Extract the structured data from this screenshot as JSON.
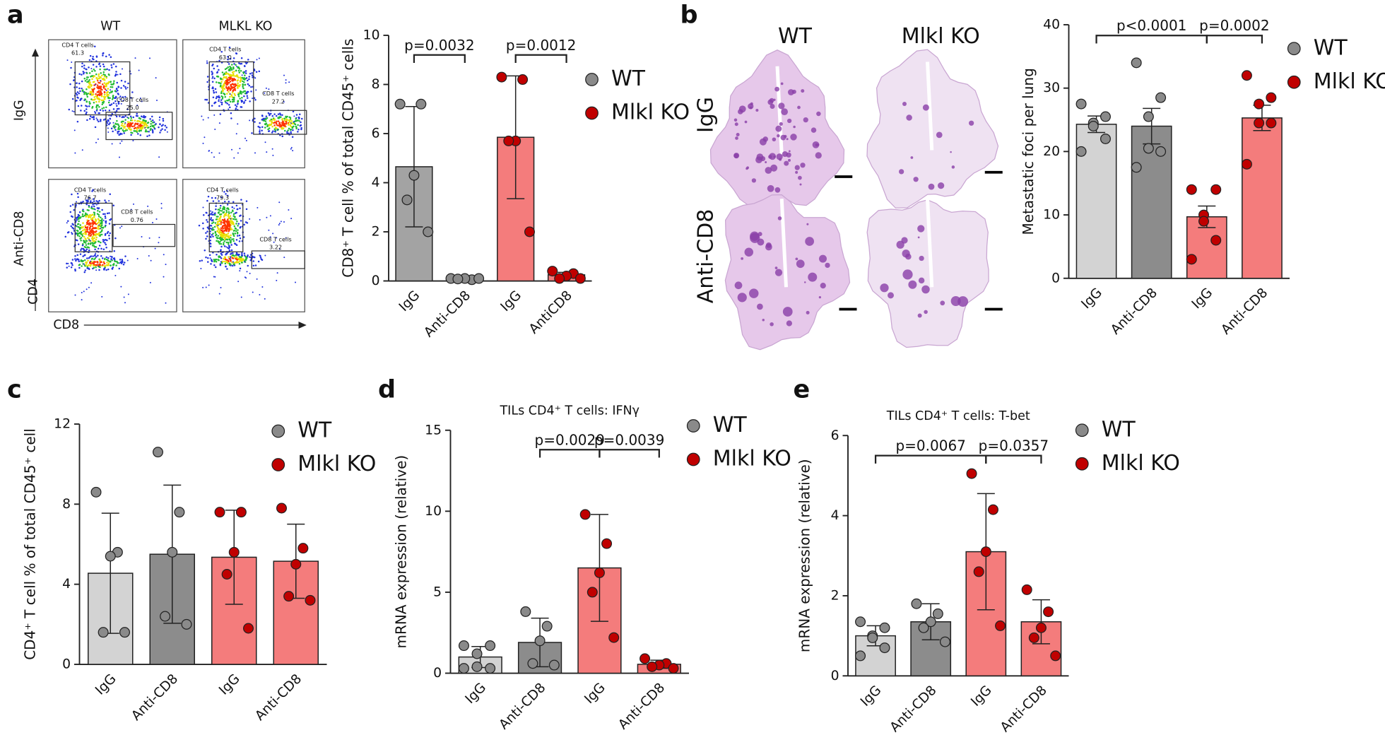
{
  "panels": [
    "a",
    "b",
    "c",
    "d",
    "e"
  ],
  "flow": {
    "columns": [
      "WT",
      "MLKL KO"
    ],
    "rows": [
      "IgG",
      "Anti-CD8"
    ],
    "x_axis": "CD8",
    "y_axis": "CD4",
    "gates": [
      [
        [
          "CD4 T cells",
          "61.3",
          "CD8 T cells",
          "25.0"
        ],
        [
          "CD4 T cells",
          "63.0",
          "CD8 T cells",
          "27.2"
        ]
      ],
      [
        [
          "CD4 T cells",
          "76.7",
          "CD8 T cells",
          "0.76"
        ],
        [
          "CD4 T cells",
          "79.3",
          "CD8 T cells",
          "3.22"
        ]
      ]
    ]
  },
  "histology": {
    "columns": [
      "WT",
      "Mlkl KO"
    ],
    "rows": [
      "IgG",
      "Anti-CD8"
    ]
  },
  "chart_data": [
    {
      "type": "bar",
      "ylabel": "CD8⁺ T cell % of total CD45⁺ cells",
      "categories": [
        "IgG",
        "Anti-CD8",
        "IgG",
        "AntiCD8"
      ],
      "values": [
        4.65,
        0.1,
        5.85,
        0.25
      ],
      "errors": [
        2.45,
        0.05,
        2.5,
        0.1
      ],
      "points": [
        [
          7.2,
          7.2,
          4.3,
          3.3,
          2.0
        ],
        [
          0.1,
          0.05,
          0.1,
          0.08,
          0.1
        ],
        [
          8.3,
          8.2,
          5.7,
          5.7,
          2.0
        ],
        [
          0.4,
          0.3,
          0.2,
          0.1,
          0.1
        ]
      ],
      "bar_colors": [
        "#a3a3a3",
        "#a3a3a3",
        "#f47c7c",
        "#f47c7c"
      ],
      "point_colors": [
        "#8a8a8a",
        "#8a8a8a",
        "#c00000",
        "#c00000"
      ],
      "legend": [
        {
          "name": "WT",
          "color": "#8a8a8a"
        },
        {
          "name": "Mlkl KO",
          "color": "#c00000"
        }
      ],
      "annotations": [
        "p=0.0032",
        "p=0.0012"
      ],
      "ylim": [
        0,
        10
      ],
      "yticks": [
        0,
        2,
        4,
        6,
        8,
        10
      ]
    },
    {
      "type": "bar",
      "ylabel": "Metastatic foci per lung",
      "categories": [
        "IgG",
        "Anti-CD8",
        "IgG",
        "Anti-CD8"
      ],
      "values": [
        24.3,
        24,
        9.7,
        25.3
      ],
      "errors": [
        1.3,
        2.8,
        1.7,
        2.0
      ],
      "points": [
        [
          27.5,
          25.5,
          24.5,
          24,
          22,
          20
        ],
        [
          34,
          28.5,
          25.5,
          20.5,
          20,
          17.5
        ],
        [
          14,
          14,
          10,
          9,
          6,
          3
        ],
        [
          32,
          28.5,
          27.5,
          24.5,
          24.5,
          18
        ]
      ],
      "bar_colors": [
        "#d3d3d3",
        "#8c8c8c",
        "#f47c7c",
        "#f47c7c"
      ],
      "point_colors": [
        "#8a8a8a",
        "#8a8a8a",
        "#c00000",
        "#c00000"
      ],
      "legend": [
        {
          "name": "WT",
          "color": "#8a8a8a"
        },
        {
          "name": "Mlkl KO",
          "color": "#c00000"
        }
      ],
      "annotations": [
        "p<0.0001",
        "p=0.0002"
      ],
      "ylim": [
        0,
        40
      ],
      "yticks": [
        0,
        10,
        20,
        30,
        40
      ]
    },
    {
      "type": "bar",
      "ylabel": "CD4⁺ T cell % of total CD45⁺ cell",
      "categories": [
        "IgG",
        "Anti-CD8",
        "IgG",
        "Anti-CD8"
      ],
      "values": [
        4.55,
        5.5,
        5.35,
        5.15
      ],
      "errors": [
        3.0,
        3.45,
        2.35,
        1.85
      ],
      "points": [
        [
          8.6,
          5.6,
          5.4,
          1.6,
          1.6
        ],
        [
          10.6,
          7.6,
          5.6,
          2.4,
          2.0
        ],
        [
          7.6,
          7.6,
          5.6,
          4.5,
          1.8
        ],
        [
          7.8,
          5.8,
          5.0,
          3.4,
          3.2
        ]
      ],
      "bar_colors": [
        "#d3d3d3",
        "#8c8c8c",
        "#f47c7c",
        "#f47c7c"
      ],
      "point_colors": [
        "#8a8a8a",
        "#8a8a8a",
        "#c00000",
        "#c00000"
      ],
      "legend": [
        {
          "name": "WT",
          "color": "#8a8a8a"
        },
        {
          "name": "Mlkl KO",
          "color": "#c00000"
        }
      ],
      "annotations": [],
      "ylim": [
        0,
        12
      ],
      "yticks": [
        0,
        4,
        8,
        12
      ]
    },
    {
      "type": "bar",
      "title": "TILs CD4⁺ T cells: IFNγ",
      "ylabel": "mRNA expression (relative)",
      "categories": [
        "IgG",
        "Anti-CD8",
        "IgG",
        "Anti-CD8"
      ],
      "values": [
        1.0,
        1.9,
        6.5,
        0.55
      ],
      "errors": [
        0.65,
        1.5,
        3.3,
        0.25
      ],
      "points": [
        [
          1.7,
          1.7,
          1.2,
          0.4,
          0.3,
          0.3
        ],
        [
          3.8,
          2.9,
          2.0,
          0.6,
          0.5
        ],
        [
          9.8,
          8.0,
          6.2,
          5.0,
          2.2
        ],
        [
          0.9,
          0.6,
          0.5,
          0.4,
          0.3
        ]
      ],
      "bar_colors": [
        "#d3d3d3",
        "#8c8c8c",
        "#f47c7c",
        "#f47c7c"
      ],
      "point_colors": [
        "#8a8a8a",
        "#8a8a8a",
        "#c00000",
        "#c00000"
      ],
      "legend": [
        {
          "name": "WT",
          "color": "#8a8a8a"
        },
        {
          "name": "Mlkl KO",
          "color": "#c00000"
        }
      ],
      "annotations": [
        "p=0.0029",
        "p=0.0039"
      ],
      "ylim": [
        0,
        15
      ],
      "yticks": [
        0,
        5,
        10,
        15
      ]
    },
    {
      "type": "bar",
      "title": "TILs CD4⁺ T cells: T-bet",
      "ylabel": "mRNA expression (relative)",
      "categories": [
        "IgG",
        "Anti-CD8",
        "IgG",
        "Anti-CD8"
      ],
      "values": [
        1.0,
        1.35,
        3.1,
        1.35
      ],
      "errors": [
        0.25,
        0.45,
        1.45,
        0.55
      ],
      "points": [
        [
          1.35,
          1.2,
          1.0,
          0.95,
          0.7,
          0.5
        ],
        [
          1.8,
          1.55,
          1.35,
          1.2,
          0.85
        ],
        [
          5.05,
          4.15,
          3.1,
          2.6,
          1.25
        ],
        [
          2.15,
          1.6,
          1.2,
          0.95,
          0.5
        ]
      ],
      "bar_colors": [
        "#d3d3d3",
        "#8c8c8c",
        "#f47c7c",
        "#f47c7c"
      ],
      "point_colors": [
        "#8a8a8a",
        "#8a8a8a",
        "#c00000",
        "#c00000"
      ],
      "legend": [
        {
          "name": "WT",
          "color": "#8a8a8a"
        },
        {
          "name": "Mlkl KO",
          "color": "#c00000"
        }
      ],
      "annotations": [
        "p=0.0067",
        "p=0.0357"
      ],
      "ylim": [
        0,
        6
      ],
      "yticks": [
        0,
        2,
        4,
        6
      ]
    }
  ]
}
